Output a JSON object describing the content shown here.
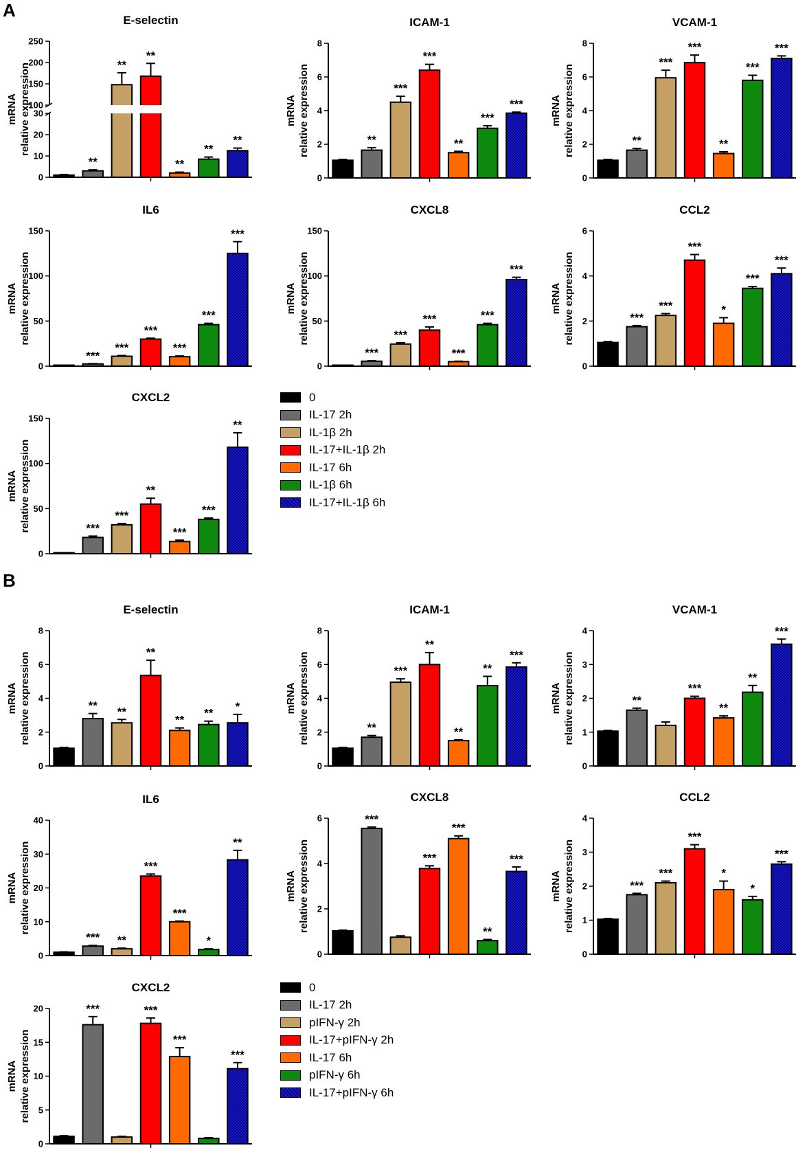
{
  "figure": {
    "panel_a_label": "A",
    "panel_b_label": "B",
    "ylabel_line1": "mRNA",
    "ylabel_line2": "relative expression"
  },
  "colors": {
    "0": "#000000",
    "g1": "#6b6b6b",
    "g2": "#c4a065",
    "g3": "#ff0000",
    "g4": "#ff6a00",
    "g5": "#0d8a0d",
    "g6": "#1818d8",
    "axis": "#000000"
  },
  "legend_a": {
    "items": [
      "0",
      "IL-17 2h",
      "IL-1β  2h",
      "IL-17+IL-1β  2h",
      "IL-17 6h",
      "IL-1β  6h",
      "IL-17+IL-1β  6h"
    ]
  },
  "legend_b": {
    "items": [
      "0",
      "IL-17 2h",
      "pIFN-γ  2h",
      "IL-17+pIFN-γ  2h",
      "IL-17 6h",
      "pIFN-γ  6h",
      "IL-17+pIFN-γ  6h"
    ]
  },
  "chart_data": [
    {
      "panel": "A",
      "type": "bar",
      "title": "E-selectin",
      "ylabel": "mRNA relative expression",
      "broken_axis": true,
      "ylim_lower": [
        0,
        30
      ],
      "yticks_lower": [
        0,
        10,
        20,
        30
      ],
      "ylim_upper": [
        100,
        250
      ],
      "yticks_upper": [
        100,
        150,
        200,
        250
      ],
      "categories": [
        "0",
        "IL-17 2h",
        "IL-1β  2h",
        "IL-17+IL-1β  2h",
        "IL-17 6h",
        "IL-1β  6h",
        "IL-17+IL-1β  6h"
      ],
      "values": [
        1,
        3,
        148,
        168,
        2,
        8.5,
        12.5
      ],
      "errors": [
        0.3,
        0.5,
        28,
        30,
        0.4,
        1,
        1.2
      ],
      "significance": [
        "",
        "**",
        "**",
        "**",
        "**",
        "**",
        "**"
      ]
    },
    {
      "panel": "A",
      "type": "bar",
      "title": "ICAM-1",
      "ylabel": "mRNA relative expression",
      "ylim": [
        0,
        8
      ],
      "yticks": [
        0,
        2,
        4,
        6,
        8
      ],
      "categories": [
        "0",
        "IL-17 2h",
        "IL-1β  2h",
        "IL-17+IL-1β  2h",
        "IL-17 6h",
        "IL-1β  6h",
        "IL-17+IL-1β  6h"
      ],
      "values": [
        1.05,
        1.65,
        4.5,
        6.4,
        1.5,
        2.95,
        3.85
      ],
      "errors": [
        0.05,
        0.15,
        0.35,
        0.35,
        0.08,
        0.15,
        0.06
      ],
      "significance": [
        "",
        "**",
        "***",
        "***",
        "**",
        "***",
        "***"
      ]
    },
    {
      "panel": "A",
      "type": "bar",
      "title": "VCAM-1",
      "ylabel": "mRNA relative expression",
      "ylim": [
        0,
        8
      ],
      "yticks": [
        0,
        2,
        4,
        6,
        8
      ],
      "categories": [
        "0",
        "IL-17 2h",
        "IL-1β  2h",
        "IL-17+IL-1β  2h",
        "IL-17 6h",
        "IL-1β  6h",
        "IL-17+IL-1β  6h"
      ],
      "values": [
        1.05,
        1.65,
        5.95,
        6.85,
        1.45,
        5.8,
        7.1
      ],
      "errors": [
        0.05,
        0.1,
        0.45,
        0.45,
        0.1,
        0.3,
        0.15
      ],
      "significance": [
        "",
        "**",
        "***",
        "***",
        "**",
        "***",
        "***"
      ]
    },
    {
      "panel": "A",
      "type": "bar",
      "title": "IL6",
      "ylabel": "mRNA relative expression",
      "ylim": [
        0,
        150
      ],
      "yticks": [
        0,
        50,
        100,
        150
      ],
      "categories": [
        "0",
        "IL-17 2h",
        "IL-1β  2h",
        "IL-17+IL-1β  2h",
        "IL-17 6h",
        "IL-1β  6h",
        "IL-17+IL-1β  6h"
      ],
      "values": [
        1,
        2.5,
        11,
        30,
        10.5,
        46,
        125
      ],
      "errors": [
        0.2,
        0.3,
        0.8,
        1,
        0.8,
        1.5,
        13
      ],
      "significance": [
        "",
        "***",
        "***",
        "***",
        "***",
        "***",
        "***"
      ]
    },
    {
      "panel": "A",
      "type": "bar",
      "title": "CXCL8",
      "ylabel": "mRNA relative expression",
      "ylim": [
        0,
        150
      ],
      "yticks": [
        0,
        50,
        100,
        150
      ],
      "categories": [
        "0",
        "IL-17 2h",
        "IL-1β  2h",
        "IL-17+IL-1β  2h",
        "IL-17 6h",
        "IL-1β  6h",
        "IL-17+IL-1β  6h"
      ],
      "values": [
        1,
        5.5,
        24.5,
        40,
        5,
        46,
        96
      ],
      "errors": [
        0.2,
        0.5,
        1.5,
        3.5,
        0.5,
        1.5,
        2.5
      ],
      "significance": [
        "",
        "***",
        "***",
        "***",
        "***",
        "***",
        "***"
      ]
    },
    {
      "panel": "A",
      "type": "bar",
      "title": "CCL2",
      "ylabel": "mRNA relative expression",
      "ylim": [
        0,
        6
      ],
      "yticks": [
        0,
        2,
        4,
        6
      ],
      "categories": [
        "0",
        "IL-17 2h",
        "IL-1β  2h",
        "IL-17+IL-1β  2h",
        "IL-17 6h",
        "IL-1β  6h",
        "IL-17+IL-1β  6h"
      ],
      "values": [
        1.05,
        1.75,
        2.25,
        4.7,
        1.9,
        3.45,
        4.1
      ],
      "errors": [
        0.04,
        0.05,
        0.08,
        0.25,
        0.25,
        0.08,
        0.25
      ],
      "significance": [
        "",
        "***",
        "***",
        "***",
        "*",
        "***",
        "***"
      ]
    },
    {
      "panel": "A",
      "type": "bar",
      "title": "CXCL2",
      "ylabel": "mRNA relative expression",
      "ylim": [
        0,
        150
      ],
      "yticks": [
        0,
        50,
        100,
        150
      ],
      "categories": [
        "0",
        "IL-17 2h",
        "IL-1β  2h",
        "IL-17+IL-1β  2h",
        "IL-17 6h",
        "IL-1β  6h",
        "IL-17+IL-1β  6h"
      ],
      "values": [
        1,
        18,
        32,
        55,
        13.5,
        38,
        118
      ],
      "errors": [
        0.2,
        1.5,
        1.5,
        6.5,
        1.5,
        1.5,
        16
      ],
      "significance": [
        "",
        "***",
        "***",
        "**",
        "***",
        "***",
        "**"
      ]
    },
    {
      "panel": "B",
      "type": "bar",
      "title": "E-selectin",
      "ylabel": "mRNA relative expression",
      "ylim": [
        0,
        8
      ],
      "yticks": [
        0,
        2,
        4,
        6,
        8
      ],
      "categories": [
        "0",
        "IL-17 2h",
        "pIFN-γ  2h",
        "IL-17+pIFN-γ  2h",
        "IL-17 6h",
        "pIFN-γ  6h",
        "IL-17+pIFN-γ  6h"
      ],
      "values": [
        1.05,
        2.8,
        2.55,
        5.35,
        2.1,
        2.45,
        2.55
      ],
      "errors": [
        0.05,
        0.3,
        0.2,
        0.9,
        0.15,
        0.2,
        0.5
      ],
      "significance": [
        "",
        "**",
        "**",
        "**",
        "**",
        "**",
        "*"
      ]
    },
    {
      "panel": "B",
      "type": "bar",
      "title": "ICAM-1",
      "ylabel": "mRNA relative expression",
      "ylim": [
        0,
        8
      ],
      "yticks": [
        0,
        2,
        4,
        6,
        8
      ],
      "categories": [
        "0",
        "IL-17 2h",
        "pIFN-γ  2h",
        "IL-17+pIFN-γ  2h",
        "IL-17 6h",
        "pIFN-γ  6h",
        "IL-17+pIFN-γ  6h"
      ],
      "values": [
        1.05,
        1.7,
        4.95,
        6.0,
        1.5,
        4.75,
        5.85
      ],
      "errors": [
        0.05,
        0.1,
        0.2,
        0.7,
        0.05,
        0.55,
        0.25
      ],
      "significance": [
        "",
        "**",
        "***",
        "**",
        "**",
        "**",
        "***"
      ]
    },
    {
      "panel": "B",
      "type": "bar",
      "title": "VCAM-1",
      "ylabel": "mRNA relative expression",
      "ylim": [
        0,
        4
      ],
      "yticks": [
        0,
        1,
        2,
        3,
        4
      ],
      "categories": [
        "0",
        "IL-17 2h",
        "pIFN-γ  2h",
        "IL-17+pIFN-γ  2h",
        "IL-17 6h",
        "pIFN-γ  6h",
        "IL-17+pIFN-γ  6h"
      ],
      "values": [
        1.03,
        1.65,
        1.2,
        2.0,
        1.42,
        2.18,
        3.6
      ],
      "errors": [
        0.02,
        0.06,
        0.1,
        0.06,
        0.06,
        0.2,
        0.15
      ],
      "significance": [
        "",
        "**",
        "",
        "***",
        "**",
        "**",
        "***"
      ]
    },
    {
      "panel": "B",
      "type": "bar",
      "title": "IL6",
      "ylabel": "mRNA relative expression",
      "ylim": [
        0,
        40
      ],
      "yticks": [
        0,
        10,
        20,
        30,
        40
      ],
      "categories": [
        "0",
        "IL-17 2h",
        "pIFN-γ  2h",
        "IL-17+pIFN-γ  2h",
        "IL-17 6h",
        "pIFN-γ  6h",
        "IL-17+pIFN-γ  6h"
      ],
      "values": [
        1,
        2.8,
        2,
        23.5,
        10,
        1.8,
        28.3
      ],
      "errors": [
        0.1,
        0.2,
        0.2,
        0.6,
        0.2,
        0.2,
        2.8
      ],
      "significance": [
        "",
        "***",
        "**",
        "***",
        "***",
        "*",
        "**"
      ]
    },
    {
      "panel": "B",
      "type": "bar",
      "title": "CXCL8",
      "ylabel": "mRNA relative expression",
      "ylim": [
        0,
        6
      ],
      "yticks": [
        0,
        2,
        4,
        6
      ],
      "categories": [
        "0",
        "IL-17 2h",
        "pIFN-γ  2h",
        "IL-17+pIFN-γ  2h",
        "IL-17 6h",
        "pIFN-γ  6h",
        "IL-17+pIFN-γ  6h"
      ],
      "values": [
        1.03,
        5.55,
        0.75,
        3.78,
        5.1,
        0.6,
        3.65
      ],
      "errors": [
        0.03,
        0.06,
        0.06,
        0.12,
        0.12,
        0.05,
        0.2
      ],
      "significance": [
        "",
        "***",
        "",
        "***",
        "***",
        "**",
        "***"
      ]
    },
    {
      "panel": "B",
      "type": "bar",
      "title": "CCL2",
      "ylabel": "mRNA relative expression",
      "ylim": [
        0,
        4
      ],
      "yticks": [
        0,
        1,
        2,
        3,
        4
      ],
      "categories": [
        "0",
        "IL-17 2h",
        "pIFN-γ  2h",
        "IL-17+pIFN-γ  2h",
        "IL-17 6h",
        "pIFN-γ  6h",
        "IL-17+pIFN-γ  6h"
      ],
      "values": [
        1.03,
        1.75,
        2.1,
        3.1,
        1.9,
        1.6,
        2.65
      ],
      "errors": [
        0.02,
        0.04,
        0.05,
        0.12,
        0.25,
        0.1,
        0.07
      ],
      "significance": [
        "",
        "***",
        "***",
        "***",
        "*",
        "*",
        "***"
      ]
    },
    {
      "panel": "B",
      "type": "bar",
      "title": "CXCL2",
      "ylabel": "mRNA relative expression",
      "ylim": [
        0,
        20
      ],
      "yticks": [
        0,
        5,
        10,
        15,
        20
      ],
      "categories": [
        "0",
        "IL-17 2h",
        "pIFN-γ  2h",
        "IL-17+pIFN-γ  2h",
        "IL-17 6h",
        "pIFN-γ  6h",
        "IL-17+pIFN-γ  6h"
      ],
      "values": [
        1.1,
        17.6,
        1.0,
        17.8,
        12.9,
        0.8,
        11.1
      ],
      "errors": [
        0.1,
        1.2,
        0.1,
        0.8,
        1.3,
        0.1,
        0.9
      ],
      "significance": [
        "",
        "***",
        "",
        "***",
        "***",
        "",
        "***"
      ]
    }
  ]
}
